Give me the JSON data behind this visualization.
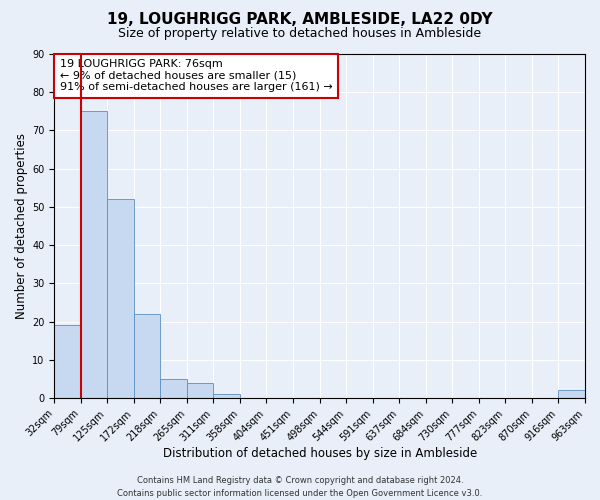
{
  "title": "19, LOUGHRIGG PARK, AMBLESIDE, LA22 0DY",
  "subtitle": "Size of property relative to detached houses in Ambleside",
  "xlabel": "Distribution of detached houses by size in Ambleside",
  "ylabel": "Number of detached properties",
  "footer_line1": "Contains HM Land Registry data © Crown copyright and database right 2024.",
  "footer_line2": "Contains public sector information licensed under the Open Government Licence v3.0.",
  "bin_edges": [
    32,
    79,
    125,
    172,
    218,
    265,
    311,
    358,
    404,
    451,
    498,
    544,
    591,
    637,
    684,
    730,
    777,
    823,
    870,
    916,
    963
  ],
  "bin_labels": [
    "32sqm",
    "79sqm",
    "125sqm",
    "172sqm",
    "218sqm",
    "265sqm",
    "311sqm",
    "358sqm",
    "404sqm",
    "451sqm",
    "498sqm",
    "544sqm",
    "591sqm",
    "637sqm",
    "684sqm",
    "730sqm",
    "777sqm",
    "823sqm",
    "870sqm",
    "916sqm",
    "963sqm"
  ],
  "bar_heights": [
    19,
    75,
    52,
    22,
    5,
    4,
    1,
    0,
    0,
    0,
    0,
    0,
    0,
    0,
    0,
    0,
    0,
    0,
    0,
    2
  ],
  "bar_color": "#c6d9f0",
  "bar_edge_color": "#5a8fc3",
  "property_line_x": 79,
  "property_line_color": "#cc0000",
  "annotation_line1": "19 LOUGHRIGG PARK: 76sqm",
  "annotation_line2": "← 9% of detached houses are smaller (15)",
  "annotation_line3": "91% of semi-detached houses are larger (161) →",
  "annotation_box_color": "#cc0000",
  "ylim": [
    0,
    90
  ],
  "yticks": [
    0,
    10,
    20,
    30,
    40,
    50,
    60,
    70,
    80,
    90
  ],
  "xlim_left": 32,
  "xlim_right": 963,
  "background_color": "#e8eff8",
  "plot_bg_color": "#e8eff8",
  "grid_color": "#ffffff",
  "title_fontsize": 11,
  "subtitle_fontsize": 9,
  "axis_label_fontsize": 8.5,
  "tick_fontsize": 7,
  "annotation_fontsize": 8,
  "footer_fontsize": 6
}
